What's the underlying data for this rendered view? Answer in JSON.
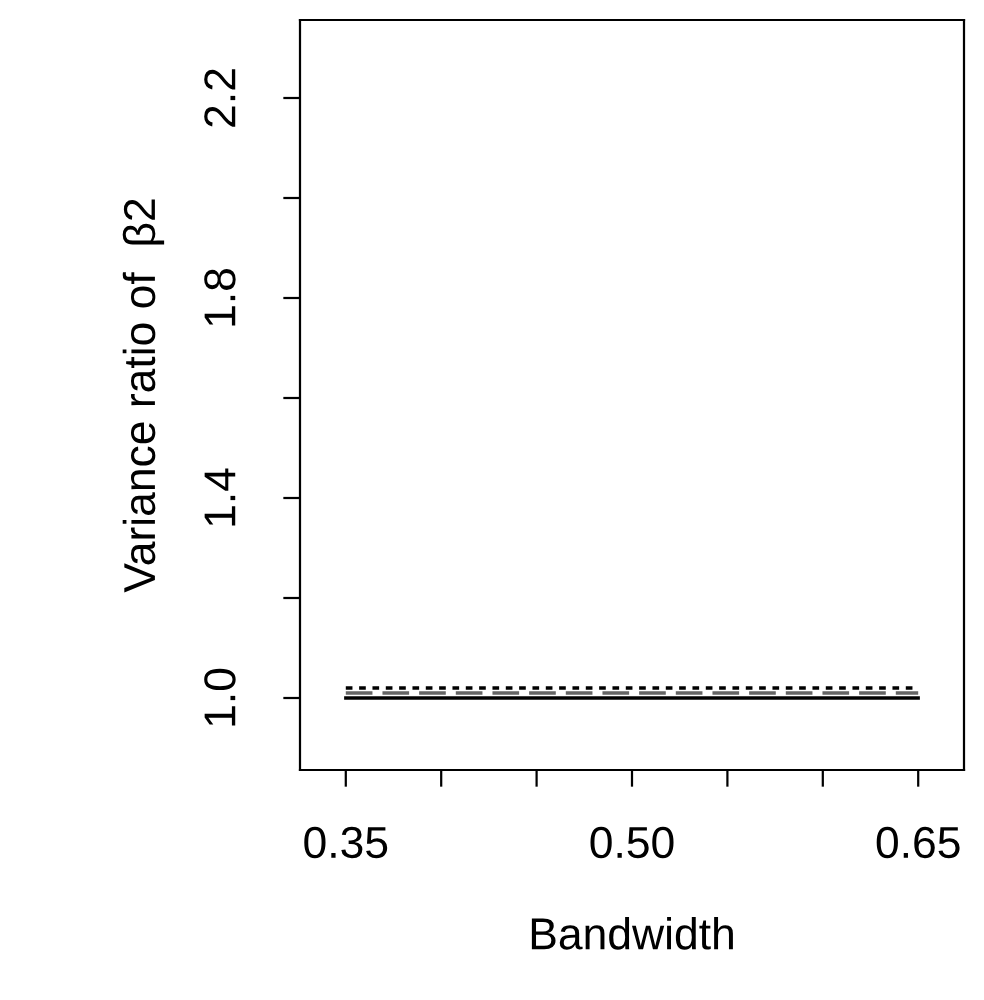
{
  "chart_data": {
    "type": "line",
    "xlabel": "Bandwidth",
    "ylabel": "Variance ratio of  β2",
    "x": [
      0.35,
      0.65
    ],
    "series": [
      {
        "color": "#000000",
        "line_style": "dotted",
        "values": [
          1.02,
          1.02
        ]
      },
      {
        "color": "#666666",
        "line_style": "dashed",
        "values": [
          1.01,
          1.01
        ]
      },
      {
        "color": "#000000",
        "line_style": "solid",
        "values": [
          1.0,
          1.0
        ]
      }
    ],
    "xlim": [
      0.326,
      0.674
    ],
    "ylim": [
      0.856,
      2.356
    ],
    "xticks": [
      {
        "value": 0.35,
        "label": "0.35"
      },
      {
        "value": 0.4,
        "label": null
      },
      {
        "value": 0.45,
        "label": null
      },
      {
        "value": 0.5,
        "label": "0.50"
      },
      {
        "value": 0.55,
        "label": null
      },
      {
        "value": 0.6,
        "label": null
      },
      {
        "value": 0.65,
        "label": "0.65"
      }
    ],
    "yticks": [
      {
        "value": 1.0,
        "label": "1.0"
      },
      {
        "value": 1.2,
        "label": null
      },
      {
        "value": 1.4,
        "label": "1.4"
      },
      {
        "value": 1.6,
        "label": null
      },
      {
        "value": 1.8,
        "label": "1.8"
      },
      {
        "value": 2.0,
        "label": null
      },
      {
        "value": 2.2,
        "label": "2.2"
      }
    ],
    "grid": false,
    "legend": false,
    "marker": "none"
  }
}
